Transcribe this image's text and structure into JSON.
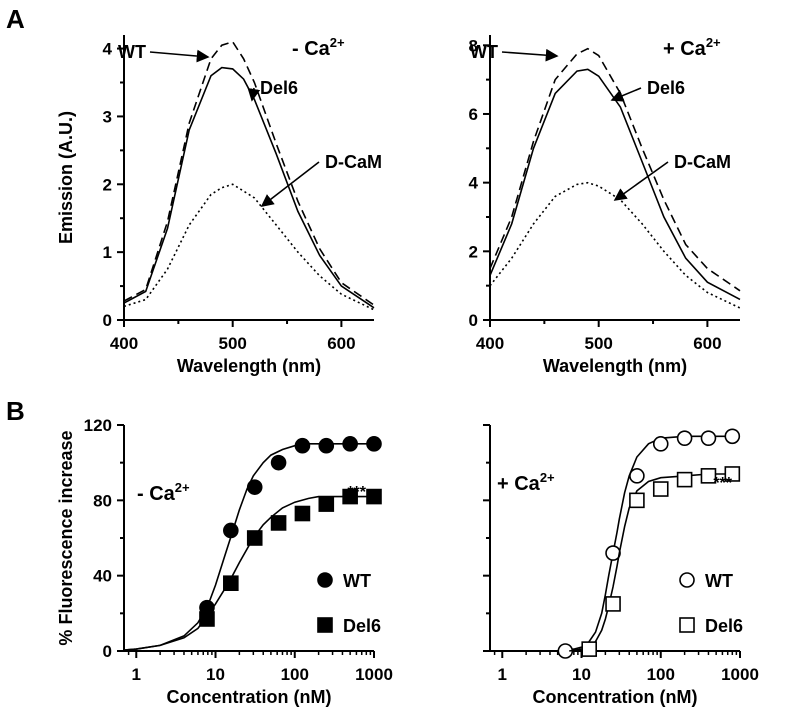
{
  "panel_labels": {
    "a": "A",
    "b": "B"
  },
  "chart_data": [
    {
      "id": "A-left",
      "type": "line",
      "condition_label": "- Ca",
      "condition_sup": "2+",
      "xlabel": "Wavelength (nm)",
      "ylabel": "Emission (A.U.)",
      "xlim": [
        400,
        630
      ],
      "ylim": [
        0,
        4.2
      ],
      "xticks": [
        400,
        500,
        600
      ],
      "xtick_labels": [
        "400",
        "500",
        "600"
      ],
      "yticks": [
        0,
        1,
        2,
        3,
        4
      ],
      "ytick_labels": [
        "0",
        "1",
        "2",
        "3",
        "4"
      ],
      "series": [
        {
          "name": "WT",
          "style": "dashed",
          "x": [
            400,
            420,
            440,
            460,
            480,
            490,
            500,
            510,
            520,
            540,
            560,
            580,
            600,
            630
          ],
          "y": [
            0.28,
            0.45,
            1.45,
            2.9,
            3.85,
            4.05,
            4.1,
            3.85,
            3.5,
            2.6,
            1.75,
            1.05,
            0.55,
            0.22
          ]
        },
        {
          "name": "Del6",
          "style": "solid",
          "x": [
            400,
            420,
            440,
            460,
            480,
            490,
            500,
            510,
            520,
            540,
            560,
            580,
            600,
            630
          ],
          "y": [
            0.25,
            0.42,
            1.35,
            2.8,
            3.6,
            3.72,
            3.7,
            3.55,
            3.25,
            2.45,
            1.6,
            0.95,
            0.5,
            0.18
          ]
        },
        {
          "name": "D-CaM",
          "style": "dotted",
          "x": [
            400,
            420,
            440,
            460,
            480,
            490,
            500,
            510,
            520,
            540,
            560,
            580,
            600,
            630
          ],
          "y": [
            0.2,
            0.3,
            0.75,
            1.4,
            1.85,
            1.95,
            2.0,
            1.9,
            1.8,
            1.4,
            1.0,
            0.65,
            0.38,
            0.15
          ]
        }
      ]
    },
    {
      "id": "A-right",
      "type": "line",
      "condition_label": "+ Ca",
      "condition_sup": "2+",
      "xlabel": "Wavelength (nm)",
      "ylabel": "",
      "xlim": [
        400,
        630
      ],
      "ylim": [
        0,
        8.3
      ],
      "xticks": [
        400,
        500,
        600
      ],
      "xtick_labels": [
        "400",
        "500",
        "600"
      ],
      "yticks": [
        0,
        2,
        4,
        6,
        8
      ],
      "ytick_labels": [
        "0",
        "2",
        "4",
        "6",
        "8"
      ],
      "series": [
        {
          "name": "WT",
          "style": "dashed",
          "x": [
            400,
            420,
            440,
            460,
            480,
            490,
            500,
            520,
            540,
            560,
            580,
            600,
            630
          ],
          "y": [
            1.5,
            3.0,
            5.2,
            7.0,
            7.75,
            7.9,
            7.7,
            6.6,
            5.0,
            3.5,
            2.2,
            1.5,
            0.85
          ]
        },
        {
          "name": "Del6",
          "style": "solid",
          "x": [
            400,
            420,
            440,
            460,
            480,
            490,
            500,
            520,
            540,
            560,
            580,
            600,
            630
          ],
          "y": [
            1.3,
            2.8,
            5.0,
            6.6,
            7.25,
            7.3,
            7.1,
            6.2,
            4.6,
            3.0,
            1.8,
            1.1,
            0.6
          ]
        },
        {
          "name": "D-CaM",
          "style": "dotted",
          "x": [
            400,
            420,
            440,
            460,
            480,
            490,
            500,
            520,
            540,
            560,
            580,
            600,
            630
          ],
          "y": [
            1.0,
            1.8,
            2.8,
            3.6,
            3.95,
            4.0,
            3.9,
            3.5,
            2.8,
            2.0,
            1.3,
            0.8,
            0.35
          ]
        }
      ]
    },
    {
      "id": "B-left",
      "type": "scatter",
      "log_x": true,
      "condition_label": "- Ca",
      "condition_sup": "2+",
      "xlabel": "Concentration (nM)",
      "ylabel": "% Fluorescence increase",
      "xlim": [
        0.7,
        1000
      ],
      "ylim": [
        0,
        120
      ],
      "xticks": [
        1,
        10,
        100,
        1000
      ],
      "xtick_labels": [
        "1",
        "10",
        "100",
        "1000"
      ],
      "yticks": [
        0,
        40,
        80,
        120
      ],
      "ytick_labels": [
        "0",
        "40",
        "80",
        "120"
      ],
      "significance": "***",
      "series": [
        {
          "name": "WT",
          "marker": "filled-circle",
          "x": [
            7.8,
            15.6,
            31.25,
            62.5,
            125,
            250,
            500,
            1000
          ],
          "y": [
            23,
            64,
            87,
            100,
            109,
            109,
            110,
            110
          ],
          "fit": {
            "x": [
              0.7,
              1,
              2,
              4,
              6,
              8,
              10,
              13,
              16,
              20,
              25,
              30,
              40,
              50,
              70,
              100,
              150,
              200,
              300,
              500,
              1000
            ],
            "y": [
              0.5,
              1,
              3,
              8,
              15,
              24,
              35,
              50,
              62,
              75,
              86,
              93,
              100,
              104,
              107,
              109,
              110,
              110,
              110,
              110,
              110
            ]
          }
        },
        {
          "name": "Del6",
          "marker": "filled-square",
          "x": [
            7.8,
            15.6,
            31.25,
            62.5,
            125,
            250,
            500,
            1000
          ],
          "y": [
            17,
            36,
            60,
            68,
            73,
            78,
            82,
            82
          ],
          "fit": {
            "x": [
              0.7,
              1,
              2,
              4,
              6,
              8,
              10,
              15,
              20,
              30,
              40,
              50,
              70,
              100,
              150,
              200,
              300,
              500,
              1000
            ],
            "y": [
              0.5,
              1,
              3,
              7,
              12,
              19,
              25,
              37,
              47,
              60,
              67,
              71,
              76,
              79,
              81,
              82,
              82,
              82,
              82
            ]
          }
        }
      ]
    },
    {
      "id": "B-right",
      "type": "scatter",
      "log_x": true,
      "condition_label": "+ Ca",
      "condition_sup": "2+",
      "xlabel": "Concentration (nM)",
      "ylabel": "",
      "xlim": [
        0.7,
        1000
      ],
      "ylim": [
        0,
        120
      ],
      "xticks": [
        1,
        10,
        100,
        1000
      ],
      "xtick_labels": [
        "1",
        "10",
        "100",
        "1000"
      ],
      "yticks": [
        0,
        40,
        80,
        120
      ],
      "ytick_labels": [],
      "significance": "***",
      "series": [
        {
          "name": "WT",
          "marker": "open-circle",
          "x": [
            6.25,
            25,
            50,
            100,
            200,
            400,
            800
          ],
          "y": [
            0,
            52,
            93,
            110,
            113,
            113,
            114
          ],
          "fit": {
            "x": [
              5,
              8,
              10,
              12,
              15,
              18,
              20,
              22,
              25,
              28,
              30,
              35,
              40,
              50,
              70,
              100,
              200,
              400,
              800
            ],
            "y": [
              0,
              1,
              2,
              4,
              10,
              20,
              30,
              40,
              52,
              63,
              70,
              84,
              93,
              103,
              110,
              113,
              114,
              114,
              114
            ]
          }
        },
        {
          "name": "Del6",
          "marker": "open-square",
          "x": [
            12.5,
            25,
            50,
            100,
            200,
            400,
            800
          ],
          "y": [
            1,
            25,
            80,
            86,
            91,
            93,
            94
          ],
          "fit": {
            "x": [
              7,
              10,
              12,
              15,
              18,
              20,
              22,
              25,
              28,
              30,
              35,
              40,
              50,
              70,
              100,
              200,
              400,
              800
            ],
            "y": [
              0,
              1,
              2,
              5,
              11,
              17,
              24,
              34,
              45,
              52,
              66,
              76,
              85,
              90,
              92,
              93,
              94,
              94
            ]
          }
        }
      ]
    }
  ]
}
